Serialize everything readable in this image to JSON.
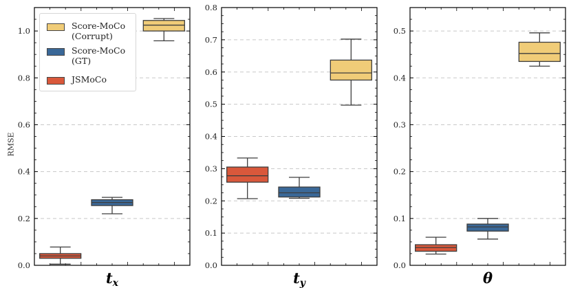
{
  "chart_data": [
    {
      "type": "box",
      "xlabel": "t",
      "xlabel_sub": "x",
      "ylabel": "RMSE",
      "ylim": [
        0,
        1.1
      ],
      "yticks": [
        0,
        0.2,
        0.4,
        0.6,
        0.8,
        1.0
      ],
      "ytick_labels": [
        "0.0",
        "0.2",
        "0.4",
        "0.6",
        "0.8",
        "1.0"
      ],
      "grid": true,
      "series": [
        {
          "name": "JSMoCo",
          "color": "#d9583b",
          "min": 0.005,
          "q1": 0.03,
          "median": 0.04,
          "q3": 0.05,
          "max": 0.078
        },
        {
          "name": "Score-MoCo (GT)",
          "color": "#3a6898",
          "min": 0.22,
          "q1": 0.255,
          "median": 0.268,
          "q3": 0.28,
          "max": 0.29
        },
        {
          "name": "Score-MoCo (Corrupt)",
          "color": "#f0cc78",
          "min": 0.958,
          "q1": 1.0,
          "median": 1.025,
          "q3": 1.045,
          "max": 1.053
        }
      ]
    },
    {
      "type": "box",
      "xlabel": "t",
      "xlabel_sub": "y",
      "ylabel": "",
      "ylim": [
        0,
        0.8
      ],
      "yticks": [
        0,
        0.1,
        0.2,
        0.3,
        0.4,
        0.5,
        0.6,
        0.7,
        0.8
      ],
      "ytick_labels": [
        "0.0",
        "0.1",
        "0.2",
        "0.3",
        "0.4",
        "0.5",
        "0.6",
        "0.7",
        "0.8"
      ],
      "grid": true,
      "series": [
        {
          "name": "JSMoCo",
          "color": "#d9583b",
          "min": 0.207,
          "q1": 0.258,
          "median": 0.278,
          "q3": 0.305,
          "max": 0.333
        },
        {
          "name": "Score-MoCo (GT)",
          "color": "#3a6898",
          "min": 0.208,
          "q1": 0.212,
          "median": 0.225,
          "q3": 0.243,
          "max": 0.273
        },
        {
          "name": "Score-MoCo (Corrupt)",
          "color": "#f0cc78",
          "min": 0.497,
          "q1": 0.575,
          "median": 0.597,
          "q3": 0.637,
          "max": 0.702
        }
      ]
    },
    {
      "type": "box",
      "xlabel": "θ",
      "xlabel_sub": "",
      "ylabel": "",
      "ylim": [
        0,
        0.55
      ],
      "yticks": [
        0,
        0.1,
        0.2,
        0.3,
        0.4,
        0.5
      ],
      "ytick_labels": [
        "0.0",
        "0.1",
        "0.2",
        "0.3",
        "0.4",
        "0.5"
      ],
      "grid": true,
      "series": [
        {
          "name": "JSMoCo",
          "color": "#d9583b",
          "min": 0.024,
          "q1": 0.03,
          "median": 0.038,
          "q3": 0.044,
          "max": 0.06
        },
        {
          "name": "Score-MoCo (GT)",
          "color": "#3a6898",
          "min": 0.056,
          "q1": 0.073,
          "median": 0.082,
          "q3": 0.088,
          "max": 0.1
        },
        {
          "name": "Score-MoCo (Corrupt)",
          "color": "#f0cc78",
          "min": 0.425,
          "q1": 0.435,
          "median": 0.452,
          "q3": 0.476,
          "max": 0.496
        }
      ]
    }
  ],
  "legend": {
    "items": [
      {
        "label": "Score-MoCo\n(Corrupt)",
        "color": "#f0cc78"
      },
      {
        "label": "Score-MoCo\n(GT)",
        "color": "#3a6898"
      },
      {
        "label": "JSMoCo",
        "color": "#d9583b"
      }
    ]
  },
  "colors": {
    "axis": "#000000",
    "grid": "#c8c8c8",
    "whisker": "#3d3d3d"
  }
}
